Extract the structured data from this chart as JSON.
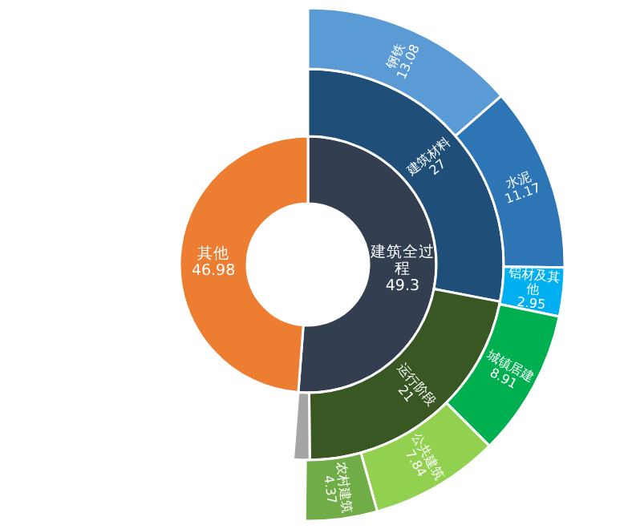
{
  "chart_data": [
    {
      "type": "donut",
      "categories": [
        "建筑全过程",
        "其他"
      ],
      "values": [
        49.3,
        46.98
      ],
      "colors": [
        "#333f50",
        "#ed7d31"
      ],
      "data_labels": true
    },
    {
      "type": "donut",
      "categories": [
        "建筑材料",
        "运行阶段",
        null
      ],
      "values": [
        27,
        21,
        1.3
      ],
      "colors": [
        "#1f4e79",
        "#385723",
        "#a5a5a5"
      ],
      "value_labels": [
        "27",
        "21",
        null
      ]
    },
    {
      "type": "donut",
      "categories": [
        "钢铁",
        "水泥",
        "铝材及其他",
        "城镇居建",
        "公共建筑",
        "农村建筑"
      ],
      "values": [
        13.08,
        11.17,
        2.95,
        8.91,
        7.84,
        4.37
      ],
      "colors": [
        "#5b9bd5",
        "#2e75b6",
        "#00b0f0",
        "#00b050",
        "#92d050",
        "#70ad47"
      ],
      "data_labels": true
    }
  ]
}
